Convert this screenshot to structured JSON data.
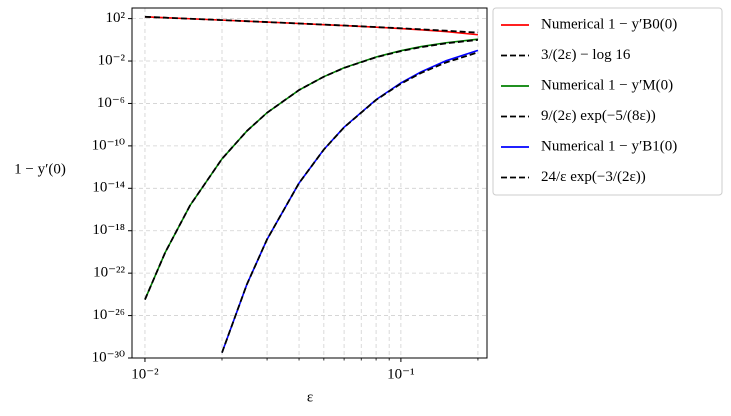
{
  "chart_data": {
    "type": "line",
    "xlabel": "ε",
    "ylabel": "1 − y′(0)",
    "x": [
      0.01,
      0.012,
      0.015,
      0.02,
      0.025,
      0.03,
      0.04,
      0.05,
      0.06,
      0.08,
      0.1,
      0.12,
      0.15,
      0.2
    ],
    "series": [
      {
        "name": "Numerical 1 − y′B0(0)",
        "color": "#ff0000",
        "dashed": false,
        "values": [
          147,
          122,
          97,
          72,
          57,
          47,
          34.5,
          27,
          22,
          15.5,
          11.5,
          8.8,
          6.0,
          3.0
        ]
      },
      {
        "name": "3/(2ε) − log 16",
        "color": "#000000",
        "dashed": true,
        "values": [
          147.23,
          122.23,
          97.23,
          72.23,
          57.23,
          47.23,
          34.73,
          27.23,
          22.23,
          15.98,
          12.23,
          9.73,
          7.23,
          4.73
        ]
      },
      {
        "name": "Numerical 1 − y′M(0)",
        "color": "#008000",
        "dashed": false,
        "values": [
          3.2e-25,
          9e-21,
          2.4e-16,
          6e-12,
          2.5e-09,
          1.34e-07,
          1.84e-05,
          0.000336,
          0.0023,
          0.024,
          0.095,
          0.23,
          0.53,
          1.15
        ]
      },
      {
        "name": "9/(2ε) exp(−5/(8ε))",
        "color": "#000000",
        "dashed": true,
        "values": [
          3.2e-25,
          9e-21,
          2.4e-16,
          6e-12,
          2.5e-09,
          1.34e-07,
          1.84e-05,
          0.000336,
          0.00224,
          0.0228,
          0.0869,
          0.205,
          0.465,
          0.99
        ]
      },
      {
        "name": "Numerical 1 − y′B1(0)",
        "color": "#0000ff",
        "dashed": false,
        "values": [
          null,
          null,
          null,
          3.2e-30,
          8.4e-24,
          1.54e-19,
          3.1e-14,
          4.6e-11,
          5.8e-09,
          2.3e-06,
          8.5e-05,
          0.00095,
          0.0105,
          0.1
        ]
      },
      {
        "name": "24/ε exp(−3/(2ε))",
        "color": "#000000",
        "dashed": true,
        "values": [
          null,
          null,
          null,
          3.2e-30,
          8.4e-24,
          1.54e-19,
          3.1e-14,
          4.5e-11,
          5.6e-09,
          2.16e-06,
          7.3e-05,
          0.00075,
          0.0073,
          0.066
        ]
      }
    ],
    "xlog": true,
    "ylog": true,
    "xlim": [
      0.0089,
      0.217
    ],
    "ylim": [
      1e-30,
      1000.0
    ],
    "xticks": [
      {
        "value": 0.01,
        "label": "10⁻²"
      },
      {
        "value": 0.1,
        "label": "10⁻¹"
      }
    ],
    "xminorticks": [
      0.02,
      0.03,
      0.04,
      0.05,
      0.06,
      0.07,
      0.08,
      0.09,
      0.2
    ],
    "yticks": [
      {
        "value": 100,
        "label": "10²"
      },
      {
        "value": 0.01,
        "label": "10⁻²"
      },
      {
        "value": 1e-06,
        "label": "10⁻⁶"
      },
      {
        "value": 1e-10,
        "label": "10⁻¹⁰"
      },
      {
        "value": 1e-14,
        "label": "10⁻¹⁴"
      },
      {
        "value": 1e-18,
        "label": "10⁻¹⁸"
      },
      {
        "value": 1e-22,
        "label": "10⁻²²"
      },
      {
        "value": 1e-26,
        "label": "10⁻²⁶"
      },
      {
        "value": 1e-30,
        "label": "10⁻³⁰"
      }
    ],
    "grid": true,
    "legend": "outside-right"
  }
}
